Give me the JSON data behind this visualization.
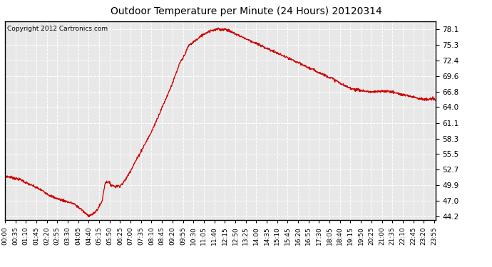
{
  "title": "Outdoor Temperature per Minute (24 Hours) 20120314",
  "copyright_text": "Copyright 2012 Cartronics.com",
  "line_color": "#cc0000",
  "background_color": "#ffffff",
  "plot_bg_color": "#e8e8e8",
  "grid_color": "#ffffff",
  "yticks": [
    44.2,
    47.0,
    49.9,
    52.7,
    55.5,
    58.3,
    61.1,
    64.0,
    66.8,
    69.6,
    72.4,
    75.3,
    78.1
  ],
  "ylim": [
    43.5,
    79.5
  ],
  "x_tick_interval": 35,
  "total_minutes": 1440,
  "keypoints": [
    [
      0,
      51.5
    ],
    [
      20,
      51.3
    ],
    [
      40,
      51.0
    ],
    [
      55,
      50.8
    ],
    [
      70,
      50.3
    ],
    [
      90,
      49.8
    ],
    [
      110,
      49.3
    ],
    [
      130,
      48.7
    ],
    [
      150,
      48.0
    ],
    [
      170,
      47.5
    ],
    [
      200,
      47.0
    ],
    [
      230,
      46.5
    ],
    [
      255,
      45.5
    ],
    [
      270,
      44.7
    ],
    [
      280,
      44.35
    ],
    [
      295,
      44.6
    ],
    [
      310,
      45.5
    ],
    [
      325,
      47.0
    ],
    [
      335,
      50.3
    ],
    [
      345,
      50.5
    ],
    [
      355,
      49.9
    ],
    [
      370,
      49.6
    ],
    [
      385,
      49.8
    ],
    [
      395,
      50.2
    ],
    [
      410,
      51.5
    ],
    [
      430,
      53.5
    ],
    [
      450,
      55.5
    ],
    [
      470,
      57.5
    ],
    [
      490,
      59.5
    ],
    [
      510,
      62.0
    ],
    [
      530,
      64.5
    ],
    [
      550,
      67.0
    ],
    [
      565,
      69.0
    ],
    [
      575,
      70.5
    ],
    [
      585,
      72.0
    ],
    [
      595,
      72.8
    ],
    [
      605,
      74.0
    ],
    [
      615,
      75.2
    ],
    [
      625,
      75.5
    ],
    [
      635,
      76.0
    ],
    [
      645,
      76.3
    ],
    [
      655,
      76.8
    ],
    [
      665,
      77.2
    ],
    [
      675,
      77.5
    ],
    [
      685,
      77.8
    ],
    [
      695,
      77.9
    ],
    [
      705,
      78.0
    ],
    [
      715,
      78.1
    ],
    [
      725,
      78.0
    ],
    [
      735,
      78.1
    ],
    [
      745,
      77.9
    ],
    [
      760,
      77.5
    ],
    [
      780,
      77.0
    ],
    [
      800,
      76.5
    ],
    [
      820,
      76.0
    ],
    [
      840,
      75.5
    ],
    [
      860,
      75.0
    ],
    [
      880,
      74.5
    ],
    [
      900,
      74.0
    ],
    [
      920,
      73.5
    ],
    [
      940,
      73.0
    ],
    [
      960,
      72.5
    ],
    [
      980,
      72.0
    ],
    [
      1000,
      71.5
    ],
    [
      1020,
      71.0
    ],
    [
      1040,
      70.5
    ],
    [
      1060,
      70.0
    ],
    [
      1080,
      69.5
    ],
    [
      1100,
      69.0
    ],
    [
      1115,
      68.5
    ],
    [
      1130,
      68.0
    ],
    [
      1150,
      67.5
    ],
    [
      1170,
      67.2
    ],
    [
      1190,
      67.0
    ],
    [
      1210,
      66.8
    ],
    [
      1230,
      66.7
    ],
    [
      1250,
      66.8
    ],
    [
      1270,
      66.9
    ],
    [
      1290,
      66.8
    ],
    [
      1310,
      66.5
    ],
    [
      1330,
      66.2
    ],
    [
      1350,
      66.0
    ],
    [
      1370,
      65.8
    ],
    [
      1390,
      65.5
    ],
    [
      1410,
      65.3
    ],
    [
      1430,
      65.5
    ],
    [
      1439,
      65.3
    ]
  ]
}
